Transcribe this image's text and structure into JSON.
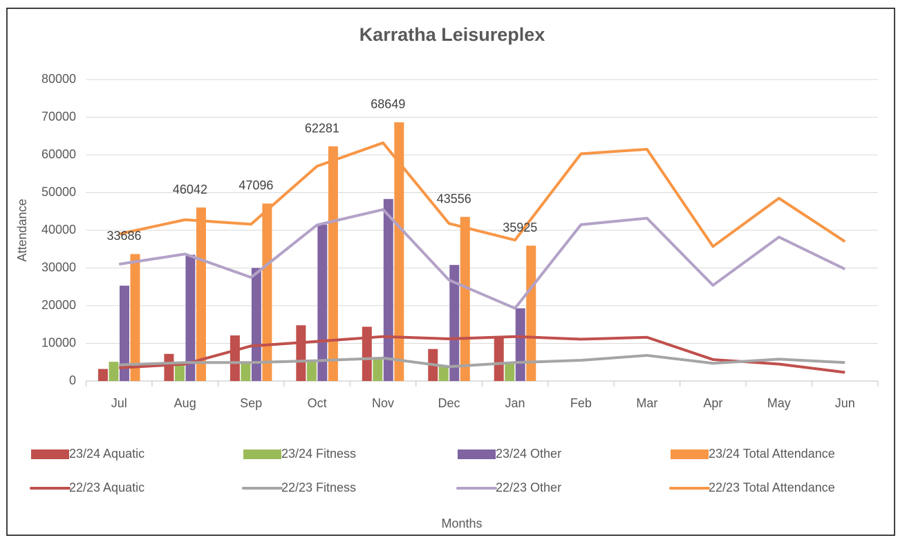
{
  "chart_data": {
    "type": "combo",
    "title": "Karratha Leisureplex",
    "x_label": "Months",
    "y_label": "Attendance",
    "categories": [
      "Jul",
      "Aug",
      "Sep",
      "Oct",
      "Nov",
      "Dec",
      "Jan",
      "Feb",
      "Mar",
      "Apr",
      "May",
      "Jun"
    ],
    "ylim": [
      0,
      80000
    ],
    "yticks": [
      0,
      10000,
      20000,
      30000,
      40000,
      50000,
      60000,
      70000,
      80000
    ],
    "grid": true,
    "legend": "bottom",
    "series": [
      {
        "name": "23/24 Aquatic",
        "type": "bar",
        "color": "#c0504d",
        "values": [
          3200,
          7200,
          12100,
          14800,
          14400,
          8500,
          11500,
          null,
          null,
          null,
          null,
          null
        ]
      },
      {
        "name": "23/24 Fitness",
        "type": "bar",
        "color": "#9bbb59",
        "values": [
          5100,
          4500,
          5000,
          5500,
          6300,
          4000,
          5000,
          null,
          null,
          null,
          null,
          null
        ]
      },
      {
        "name": "23/24 Other",
        "type": "bar",
        "color": "#8064a2",
        "values": [
          25300,
          33500,
          30000,
          41500,
          48300,
          30800,
          19300,
          null,
          null,
          null,
          null,
          null
        ]
      },
      {
        "name": "23/24 Total Attendance",
        "type": "bar",
        "color": "#f79646",
        "data_labels": true,
        "values": [
          33686,
          46042,
          47096,
          62281,
          68649,
          43556,
          35925,
          null,
          null,
          null,
          null,
          null
        ]
      },
      {
        "name": "22/23 Aquatic",
        "type": "line",
        "color": "#c0504d",
        "values": [
          3500,
          4500,
          9300,
          10500,
          11800,
          11200,
          11800,
          11100,
          11600,
          5700,
          4500,
          2300
        ]
      },
      {
        "name": "22/23 Fitness",
        "type": "line",
        "color": "#a5a5a5",
        "values": [
          4300,
          4900,
          4900,
          5400,
          6100,
          3800,
          4900,
          5500,
          6800,
          4700,
          5800,
          4900
        ]
      },
      {
        "name": "22/23 Other",
        "type": "line",
        "color": "#b3a2c7",
        "values": [
          31000,
          33700,
          27500,
          41400,
          45500,
          26800,
          19300,
          41500,
          43200,
          25400,
          38200,
          29700
        ]
      },
      {
        "name": "22/23 Total Attendance",
        "type": "line",
        "color": "#f79646",
        "values": [
          39000,
          42800,
          41600,
          57000,
          63200,
          41800,
          37400,
          60300,
          61500,
          35700,
          48500,
          37000
        ]
      }
    ]
  }
}
